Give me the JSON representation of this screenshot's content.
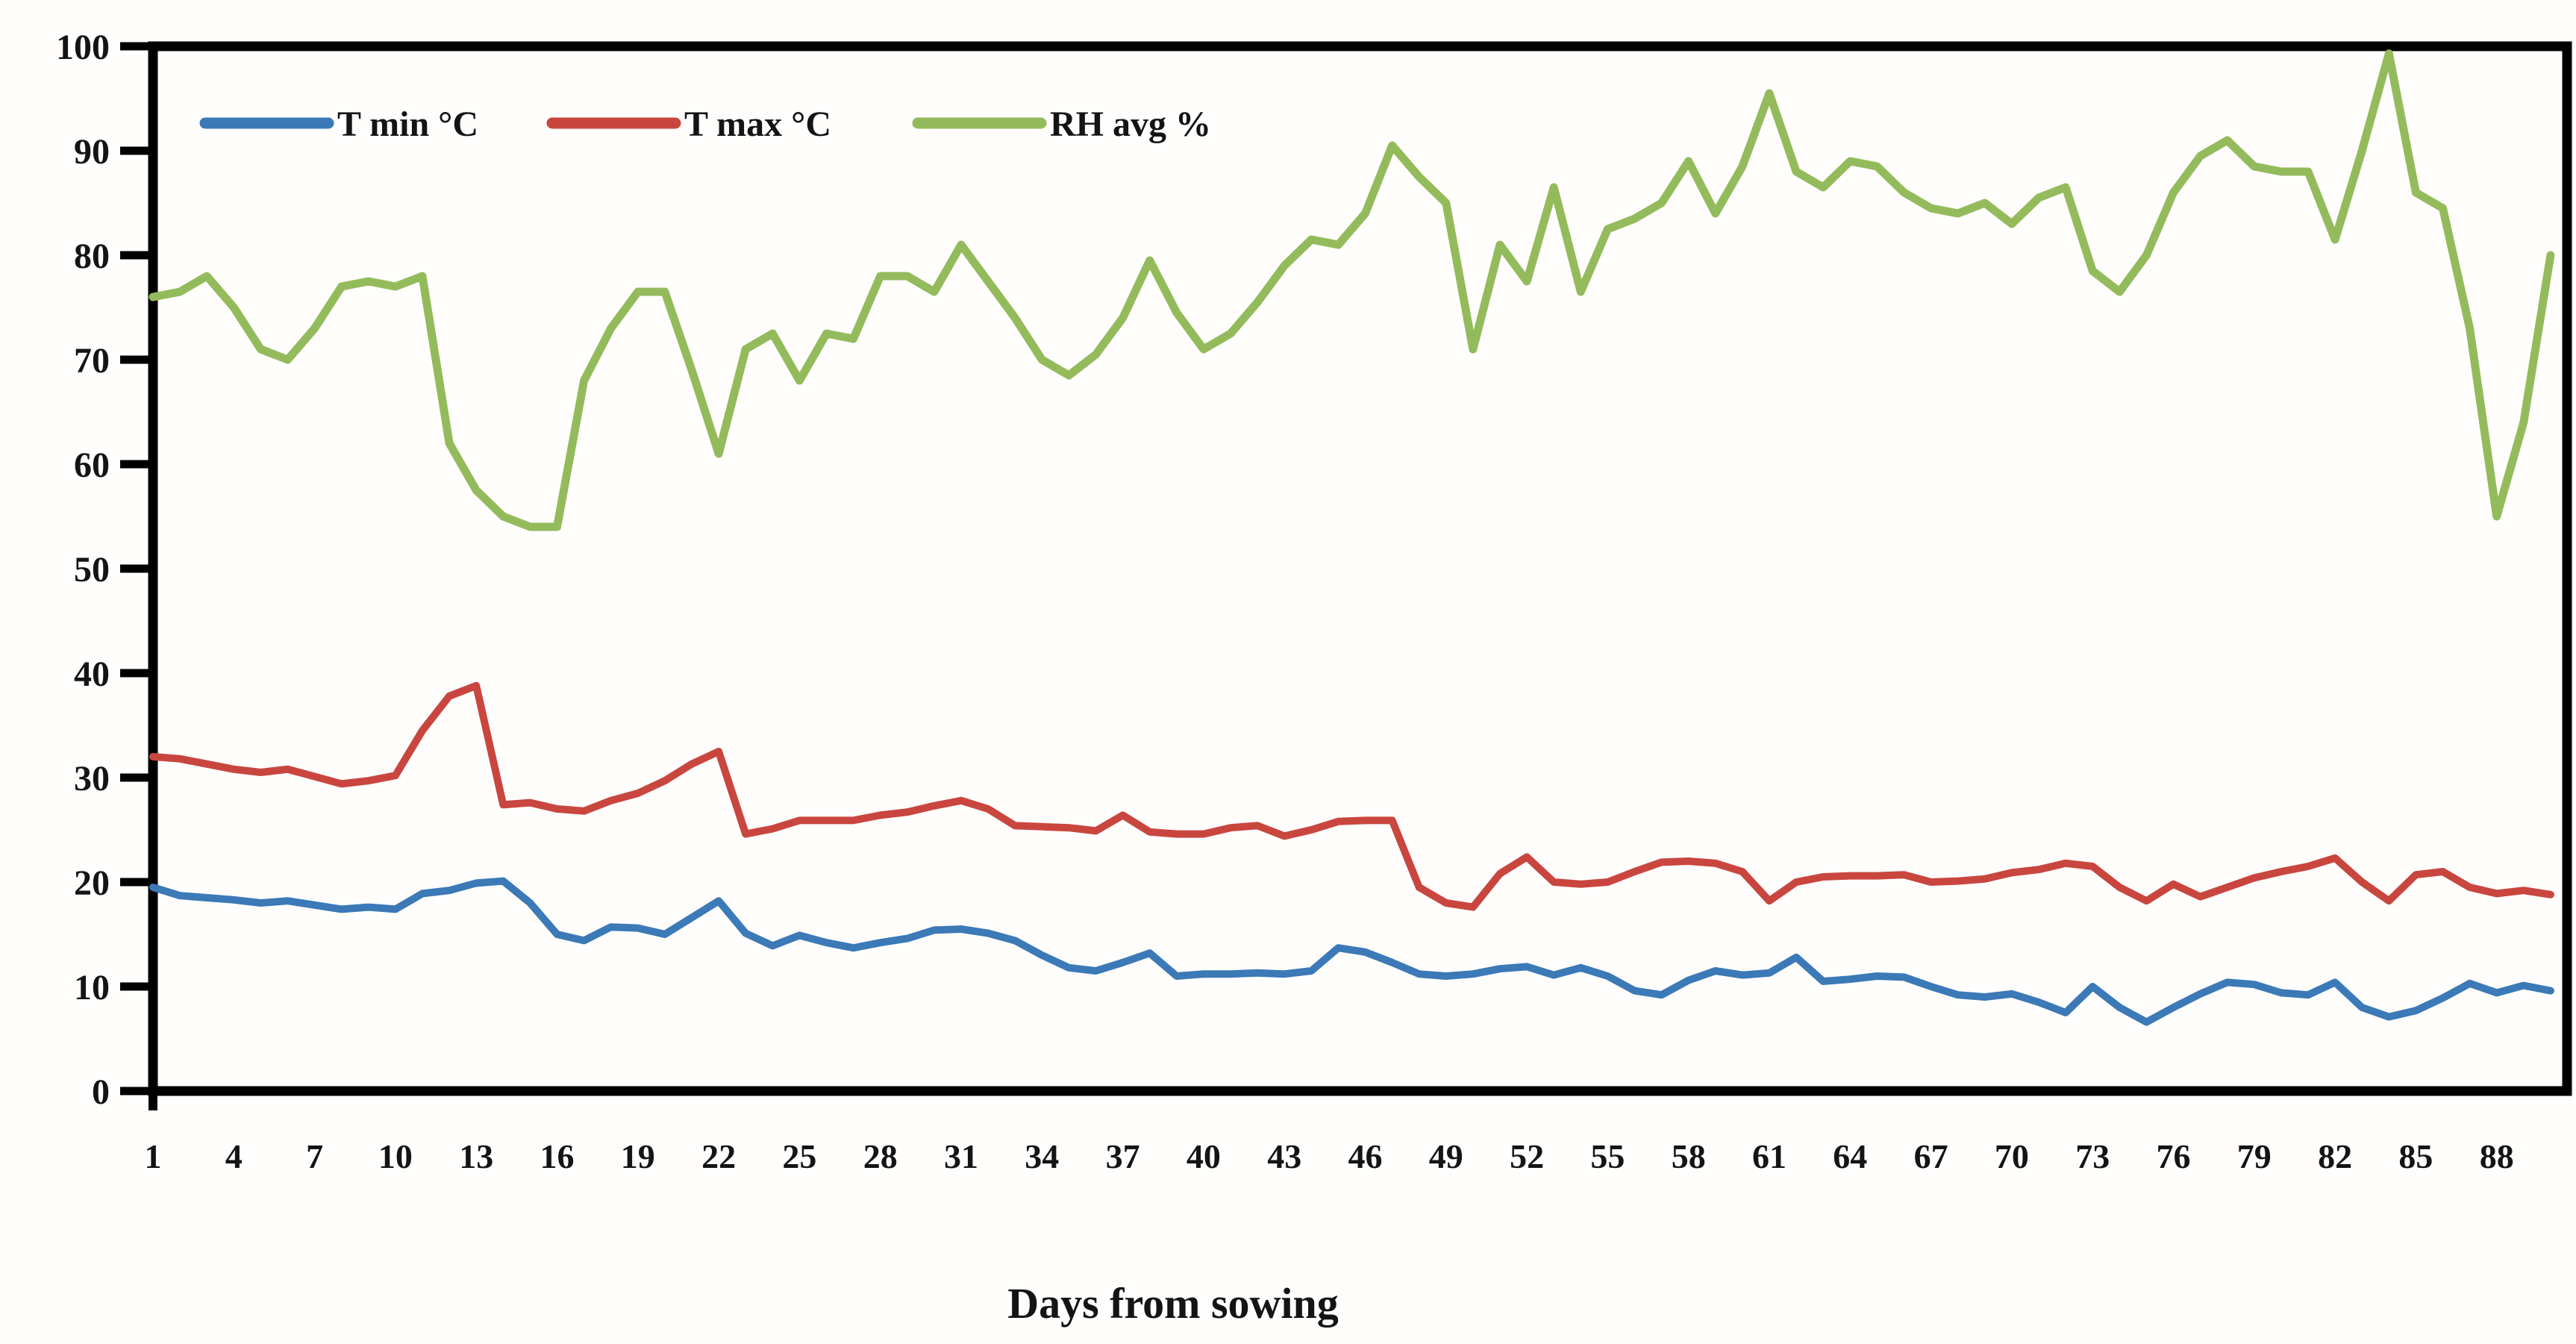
{
  "chart_data": {
    "type": "line",
    "title": "",
    "xlabel": "Days from sowing",
    "ylabel": "",
    "ylim": [
      0,
      100
    ],
    "grid": false,
    "legend_position": "top-left-inside",
    "background_color": "#fffefd",
    "axis_color": "#000000",
    "x_tick_labels": [
      1,
      4,
      7,
      10,
      13,
      16,
      19,
      22,
      25,
      28,
      31,
      34,
      37,
      40,
      43,
      46,
      49,
      52,
      55,
      58,
      61,
      64,
      67,
      70,
      73,
      76,
      79,
      82,
      85,
      88
    ],
    "y_ticks": [
      0,
      10,
      20,
      30,
      40,
      50,
      60,
      70,
      80,
      90,
      100
    ],
    "x": [
      1,
      2,
      3,
      4,
      5,
      6,
      7,
      8,
      9,
      10,
      11,
      12,
      13,
      14,
      15,
      16,
      17,
      18,
      19,
      20,
      21,
      22,
      23,
      24,
      25,
      26,
      27,
      28,
      29,
      30,
      31,
      32,
      33,
      34,
      35,
      36,
      37,
      38,
      39,
      40,
      41,
      42,
      43,
      44,
      45,
      46,
      47,
      48,
      49,
      50,
      51,
      52,
      53,
      54,
      55,
      56,
      57,
      58,
      59,
      60,
      61,
      62,
      63,
      64,
      65,
      66,
      67,
      68,
      69,
      70,
      71,
      72,
      73,
      74,
      75,
      76,
      77,
      78,
      79,
      80,
      81,
      82,
      83,
      84,
      85,
      86,
      87,
      88,
      89,
      90
    ],
    "series": [
      {
        "name": "T min °C",
        "color": "#3B79B7",
        "stroke_width": 10,
        "values": [
          19.5,
          18.7,
          18.5,
          18.3,
          18.0,
          18.2,
          17.8,
          17.4,
          17.6,
          17.4,
          18.9,
          19.2,
          19.9,
          20.1,
          18.0,
          15.0,
          14.4,
          15.7,
          15.6,
          15.0,
          16.6,
          18.2,
          15.1,
          13.9,
          14.9,
          14.2,
          13.7,
          14.2,
          14.6,
          15.4,
          15.5,
          15.1,
          14.4,
          13.0,
          11.8,
          11.5,
          12.3,
          13.2,
          11.0,
          11.2,
          11.2,
          11.3,
          11.2,
          11.5,
          13.7,
          13.3,
          12.3,
          11.2,
          11.0,
          11.2,
          11.7,
          11.9,
          11.1,
          11.8,
          11.0,
          9.6,
          9.2,
          10.6,
          11.5,
          11.1,
          11.3,
          12.8,
          10.5,
          10.7,
          11.0,
          10.9,
          10.0,
          9.2,
          9.0,
          9.3,
          8.5,
          7.5,
          10.0,
          8.0,
          6.6,
          8.0,
          9.3,
          10.4,
          10.2,
          9.4,
          9.2,
          10.4,
          8.0,
          7.1,
          7.7,
          8.9,
          10.3,
          9.4,
          10.1,
          9.6
        ]
      },
      {
        "name": "T max °C",
        "color": "#C9463F",
        "stroke_width": 10,
        "values": [
          32.0,
          31.8,
          31.3,
          30.8,
          30.5,
          30.8,
          30.1,
          29.4,
          29.7,
          30.2,
          34.5,
          37.8,
          38.8,
          27.4,
          27.6,
          27.0,
          26.8,
          27.8,
          28.5,
          29.7,
          31.3,
          32.5,
          24.6,
          25.1,
          25.9,
          25.9,
          25.9,
          26.4,
          26.7,
          27.3,
          27.8,
          27.0,
          25.4,
          25.3,
          25.2,
          24.9,
          26.4,
          24.8,
          24.6,
          24.6,
          25.2,
          25.4,
          24.4,
          25.0,
          25.8,
          25.9,
          25.9,
          19.5,
          18.0,
          17.6,
          20.8,
          22.4,
          20.0,
          19.8,
          20.0,
          21.0,
          21.9,
          22.0,
          21.8,
          21.0,
          18.2,
          20.0,
          20.5,
          20.6,
          20.6,
          20.7,
          20.0,
          20.1,
          20.3,
          20.9,
          21.2,
          21.8,
          21.5,
          19.5,
          18.2,
          19.8,
          18.6,
          19.5,
          20.4,
          21.0,
          21.5,
          22.3,
          20.0,
          18.2,
          20.7,
          21.0,
          19.5,
          18.9,
          19.2,
          18.8
        ]
      },
      {
        "name": "RH avg %",
        "color": "#94BB5B",
        "stroke_width": 11,
        "values": [
          76,
          76.5,
          78,
          75,
          71,
          70,
          73,
          77,
          77.5,
          77,
          78,
          62,
          57.5,
          55,
          54,
          54,
          68,
          73,
          76.5,
          76.5,
          69,
          61,
          71,
          72.5,
          68,
          72.5,
          72,
          78,
          78,
          76.5,
          81,
          77.5,
          74,
          70,
          68.5,
          70.5,
          74,
          79.5,
          74.5,
          71,
          72.5,
          75.5,
          79,
          81.5,
          81,
          84,
          90.5,
          87.5,
          85,
          71,
          81,
          77.5,
          86.5,
          76.5,
          82.5,
          83.5,
          85,
          89,
          84,
          88.5,
          95.5,
          88,
          86.5,
          89,
          88.5,
          86,
          84.5,
          84,
          85,
          83,
          85.5,
          86.5,
          78.5,
          76.5,
          80,
          86,
          89.5,
          91,
          88.5,
          88,
          88,
          81.5,
          90,
          99.3,
          86,
          84.5,
          73,
          55,
          64,
          80
        ]
      }
    ]
  }
}
